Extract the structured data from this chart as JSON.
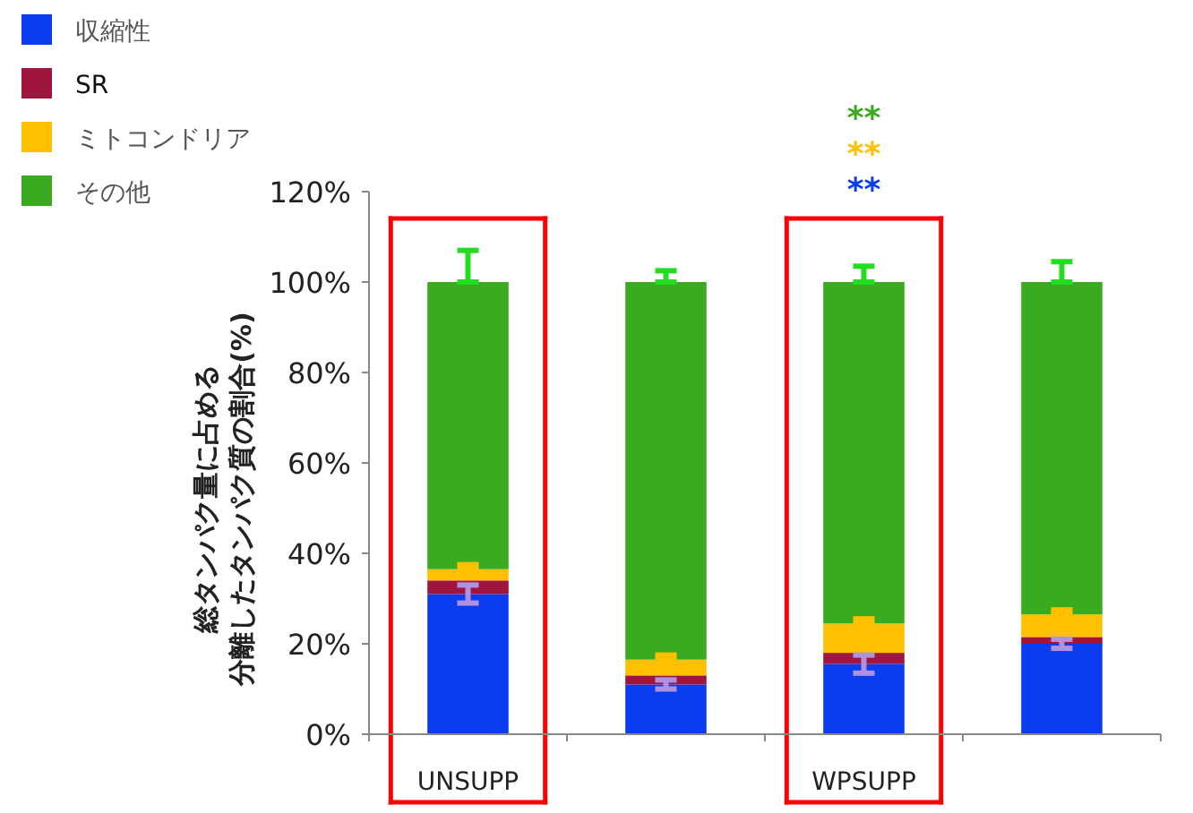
{
  "chart_data": {
    "type": "bar",
    "stacked": true,
    "ylabel": "総タンパク量に占める分離したタンパク質の割合(%)",
    "categories": [
      "UNSUPP",
      null,
      "WPSUPP",
      null
    ],
    "series": [
      {
        "name": "収縮性",
        "color": "#0a3cf0",
        "values": [
          31,
          11,
          15.5,
          20
        ],
        "errors": [
          2,
          1,
          2,
          1
        ]
      },
      {
        "name": "SR",
        "color": "#a0153e",
        "values": [
          3,
          2,
          2.5,
          1.5
        ]
      },
      {
        "name": "ミトコンドリア",
        "color": "#ffc000",
        "values": [
          2.5,
          3.5,
          6.5,
          5
        ],
        "errors": [
          [
            36.5,
            37.5
          ],
          [
            16.5,
            17.5
          ],
          [
            24.5,
            25.5
          ],
          [
            26.5,
            27.5
          ]
        ]
      },
      {
        "name": "その他",
        "color": "#3aaa20",
        "values": [
          63.5,
          83.5,
          75.5,
          73.5
        ],
        "errors": [
          [
            100,
            107
          ],
          [
            100,
            102.5
          ],
          [
            100,
            103.5
          ],
          [
            100,
            104.5
          ]
        ]
      }
    ],
    "ylim": [
      0,
      120
    ],
    "yticks": [
      {
        "value": 0,
        "label": "0%"
      },
      {
        "value": 20,
        "label": "20%"
      },
      {
        "value": 40,
        "label": "40%"
      },
      {
        "value": 60,
        "label": "60%"
      },
      {
        "value": 80,
        "label": "80%"
      },
      {
        "value": 100,
        "label": "100%"
      },
      {
        "value": 120,
        "label": "120%"
      }
    ],
    "annotations": [
      "**",
      "**",
      "**"
    ],
    "legend": "top left",
    "grid": false
  }
}
